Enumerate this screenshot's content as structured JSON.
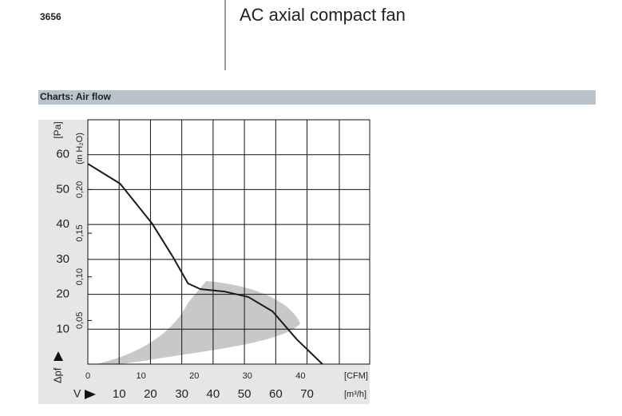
{
  "header": {
    "code": "3656",
    "title": "AC axial compact fan",
    "section": "Charts: Air flow"
  },
  "chart_data": {
    "type": "line",
    "ylabel": "[Pa]",
    "ysymbol": "Δpf",
    "y2label": "(in H₂O)",
    "xsymbol": "V",
    "xunit": "[m³/h]",
    "x2unit": "[CFM]",
    "x": [
      0,
      10.3,
      20.5,
      26.9,
      32,
      35.9,
      43.6,
      51.3,
      59,
      66.7,
      74.9
    ],
    "series": [
      {
        "color": "#1a1a1a",
        "values": [
          57.4,
          51.7,
          40.3,
          31.1,
          23.1,
          21.5,
          20.8,
          19.2,
          15.1,
          7.1,
          0
        ]
      }
    ],
    "xlim": [
      0,
      90
    ],
    "xticks": [
      10,
      20,
      30,
      40,
      50,
      60,
      70
    ],
    "x2lim": [
      0,
      53
    ],
    "x2ticks": [
      0,
      10,
      20,
      30,
      40
    ],
    "ylim": [
      0,
      70
    ],
    "yticks": [
      10,
      20,
      30,
      40,
      50,
      60
    ],
    "y2lim": [
      0,
      0.28
    ],
    "y2ticks": [
      {
        "value": 0.05,
        "label": "0,05"
      },
      {
        "value": 0.1,
        "label": "0,10"
      },
      {
        "value": 0.15,
        "label": "0,15"
      },
      {
        "value": 0.2,
        "label": "0,20"
      }
    ],
    "grid": true
  }
}
